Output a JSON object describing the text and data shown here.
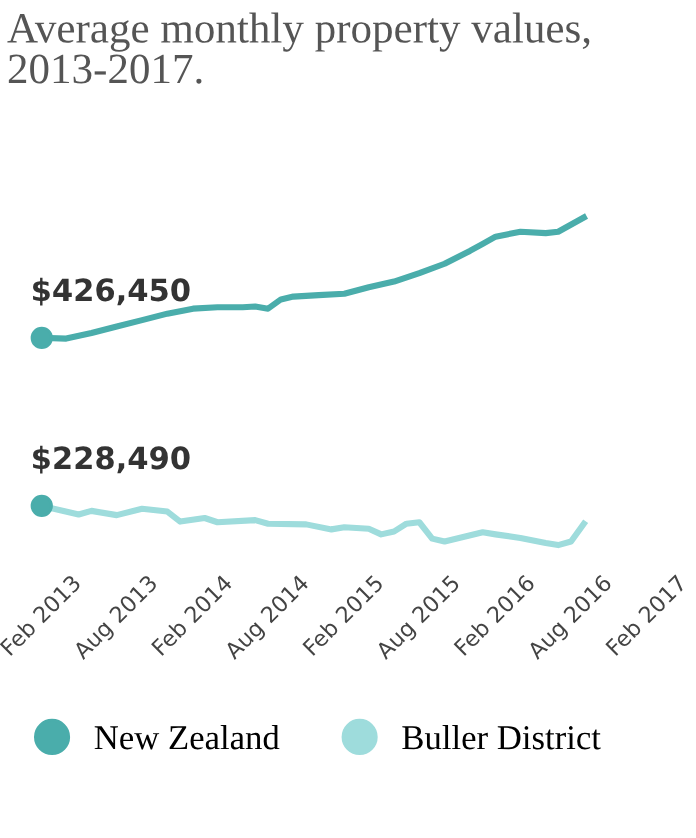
{
  "chart_data": {
    "type": "line",
    "title": "Average monthly property values, 2013-2017.",
    "xlim": [
      "2013-02",
      "2017-02"
    ],
    "xticks": [
      {
        "value": "2013-02",
        "label": "Feb 2013"
      },
      {
        "value": "2013-08",
        "label": "Aug 2013"
      },
      {
        "value": "2014-02",
        "label": "Feb 2014"
      },
      {
        "value": "2014-08",
        "label": "Aug 2014"
      },
      {
        "value": "2015-02",
        "label": "Feb 2015"
      },
      {
        "value": "2015-08",
        "label": "Aug 2015"
      },
      {
        "value": "2016-02",
        "label": "Feb 2016"
      },
      {
        "value": "2016-08",
        "label": "Aug 2016"
      },
      {
        "value": "2017-02",
        "label": "Feb 2017"
      }
    ],
    "tick_labels": "x",
    "grid": false,
    "legend": "bottom",
    "series": [
      {
        "name": "New Zealand",
        "color": "#4aadab",
        "x": [
          "2013-02",
          "2013-04",
          "2013-06",
          "2013-08",
          "2013-10",
          "2013-12",
          "2014-02",
          "2014-04",
          "2014-06",
          "2014-07",
          "2014-08",
          "2014-09",
          "2014-10",
          "2014-12",
          "2015-02",
          "2015-04",
          "2015-06",
          "2015-08",
          "2015-10",
          "2015-12",
          "2016-01",
          "2016-02",
          "2016-04",
          "2016-06",
          "2016-07",
          "2016-09"
        ],
        "values": [
          426450,
          425600,
          432300,
          439900,
          447400,
          455000,
          460900,
          462600,
          462600,
          463400,
          460900,
          471800,
          475100,
          476800,
          478500,
          486100,
          492800,
          502800,
          513800,
          528900,
          537300,
          545700,
          551500,
          549900,
          551500,
          568300
        ],
        "value_labels": [
          "$426,450",
          null,
          null,
          null,
          null,
          null,
          null,
          null,
          null,
          null,
          null,
          null,
          null,
          null,
          null,
          null,
          null,
          null,
          null,
          null,
          null,
          null,
          null,
          null,
          null,
          null
        ]
      },
      {
        "name": "Buller District",
        "color": "#9edcdc",
        "x": [
          "2013-02",
          "2013-05",
          "2013-06",
          "2013-08",
          "2013-10",
          "2013-12",
          "2014-01",
          "2014-03",
          "2014-04",
          "2014-07",
          "2014-08",
          "2014-11",
          "2015-01",
          "2015-02",
          "2015-04",
          "2015-05",
          "2015-06",
          "2015-07",
          "2015-08",
          "2015-09",
          "2015-10",
          "2016-01",
          "2016-02",
          "2016-04",
          "2016-06",
          "2016-07",
          "2016-08",
          "2016-09"
        ],
        "values": [
          228490,
          218400,
          222600,
          217600,
          225100,
          221800,
          210000,
          214200,
          209200,
          211700,
          207500,
          206700,
          200800,
          203300,
          201600,
          194900,
          198300,
          207500,
          209200,
          189900,
          186500,
          197400,
          194900,
          190700,
          184800,
          182300,
          186500,
          207500
        ],
        "value_labels": [
          "$228,490",
          null,
          null,
          null,
          null,
          null,
          null,
          null,
          null,
          null,
          null,
          null,
          null,
          null,
          null,
          null,
          null,
          null,
          null,
          null,
          null,
          null,
          null,
          null,
          null,
          null,
          null,
          null
        ]
      }
    ]
  }
}
